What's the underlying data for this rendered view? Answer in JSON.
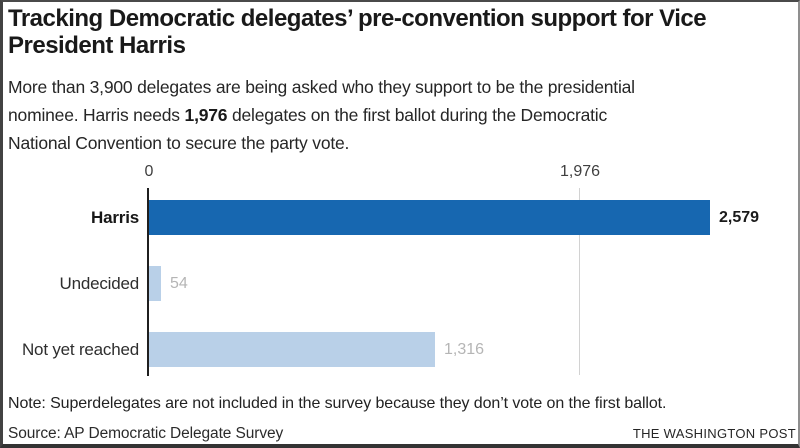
{
  "header": {
    "title_lines": [
      "Tracking Democratic delegates’ pre-convention support for Vice",
      "President Harris"
    ],
    "subtitle_line1": "More than 3,900 delegates are being asked who they support to be the presidential",
    "subtitle_line2_pre": "nominee. Harris needs ",
    "subtitle_line2_bold": "1,976",
    "subtitle_line2_post": " delegates on the first ballot during the Democratic",
    "subtitle_line3": "National Convention to secure the party vote."
  },
  "chart_data": {
    "type": "bar",
    "orientation": "horizontal",
    "title": "Tracking Democratic delegates’ pre-convention support for Vice President Harris",
    "subtitle": "More than 3,900 delegates are being asked who they support to be the presidential nominee. Harris needs 1,976 delegates on the first ballot during the Democratic National Convention to secure the party vote.",
    "categories": [
      "Harris",
      "Undecided",
      "Not yet reached"
    ],
    "values": [
      2579,
      54,
      1316
    ],
    "value_labels": [
      "2,579",
      "54",
      "1,316"
    ],
    "highlight_index": 0,
    "threshold_value": 1976,
    "axis": {
      "ticks": [
        0,
        1976
      ],
      "tick_labels": [
        "0",
        "1,976"
      ],
      "xlim": [
        0,
        2579
      ],
      "gridline_at": 1976
    },
    "legend": null,
    "colors": {
      "highlight_bar": "#1767b0",
      "muted_bar": "#b9d0e8",
      "highlight_value": "#1a1a1a",
      "muted_value": "#b5b5b5"
    }
  },
  "footer": {
    "note": "Note: Superdelegates are not included in the survey because they don’t vote on the first ballot.",
    "source": "Source: AP Democratic Delegate Survey",
    "brand": "THE WASHINGTON POST"
  }
}
